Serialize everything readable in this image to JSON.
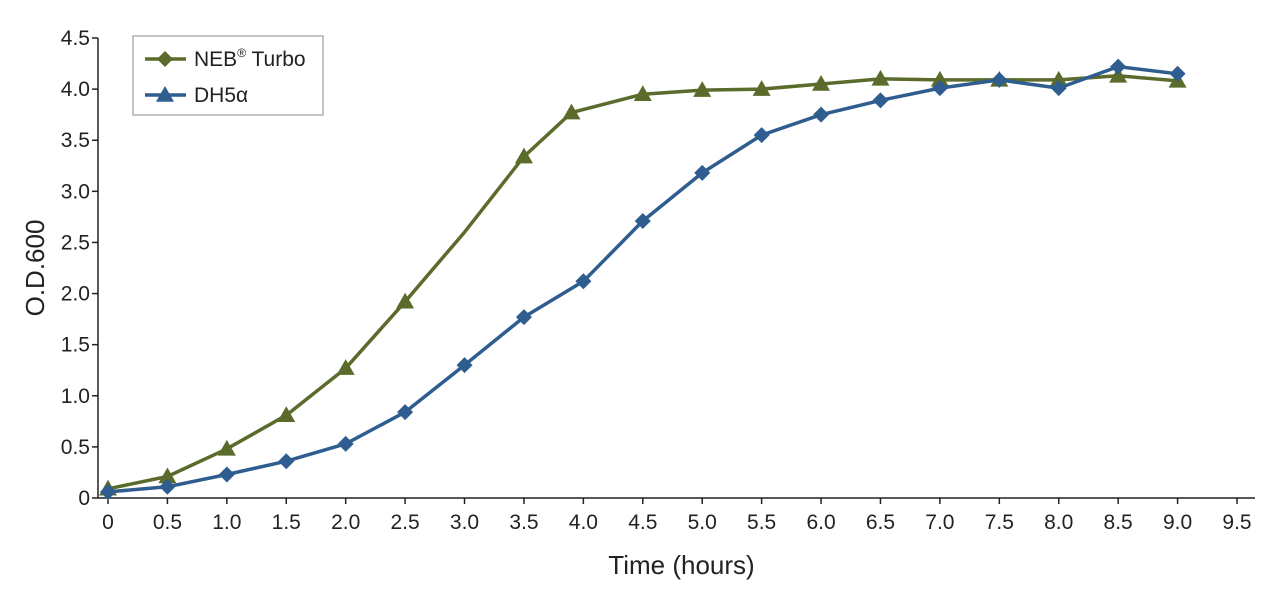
{
  "chart_data": {
    "type": "line",
    "xlabel": "Time (hours)",
    "ylabel": "O.D.600",
    "xlim": [
      0,
      9.5
    ],
    "ylim": [
      0,
      4.5
    ],
    "x_ticks": [
      "0",
      "0.5",
      "1.0",
      "1.5",
      "2.0",
      "2.5",
      "3.0",
      "3.5",
      "4.0",
      "4.5",
      "5.0",
      "5.5",
      "6.0",
      "6.5",
      "7.0",
      "7.5",
      "8.0",
      "8.5",
      "9.0",
      "9.5"
    ],
    "x_tick_values": [
      0,
      0.5,
      1,
      1.5,
      2,
      2.5,
      3,
      3.5,
      4,
      4.5,
      5,
      5.5,
      6,
      6.5,
      7,
      7.5,
      8,
      8.5,
      9,
      9.5
    ],
    "y_ticks": [
      "0",
      "0.5",
      "1.0",
      "1.5",
      "2.0",
      "2.5",
      "3.0",
      "3.5",
      "4.0",
      "4.5"
    ],
    "y_tick_values": [
      0,
      0.5,
      1,
      1.5,
      2,
      2.5,
      3,
      3.5,
      4,
      4.5
    ],
    "grid": false,
    "legend_position": "top-left",
    "series": [
      {
        "name": "NEB",
        "name_sup": "®",
        "name_suffix": " Turbo",
        "color": "#5a6b2b",
        "legend_marker": "diamond",
        "plot_marker": "triangle",
        "x": [
          0,
          0.5,
          1.0,
          1.5,
          2.0,
          2.5,
          3.0,
          3.5,
          3.9,
          4.5,
          5.0,
          5.5,
          6.0,
          6.5,
          7.0,
          7.5,
          8.0,
          8.5,
          9.0
        ],
        "y": [
          0.09,
          0.21,
          0.48,
          0.81,
          1.27,
          1.92,
          2.6,
          3.34,
          3.77,
          3.95,
          3.99,
          4.0,
          4.05,
          4.1,
          4.09,
          4.09,
          4.09,
          4.13,
          4.08
        ],
        "marker_mask": [
          true,
          true,
          true,
          true,
          true,
          true,
          false,
          true,
          true,
          true,
          true,
          true,
          true,
          true,
          true,
          true,
          true,
          true,
          true
        ]
      },
      {
        "name": "DH5α",
        "color": "#2f5d8f",
        "legend_marker": "triangle",
        "plot_marker": "diamond",
        "x": [
          0,
          0.5,
          1.0,
          1.5,
          2.0,
          2.5,
          3.0,
          3.5,
          4.0,
          4.5,
          5.0,
          5.5,
          6.0,
          6.5,
          7.0,
          7.5,
          8.0,
          8.5,
          9.0
        ],
        "y": [
          0.06,
          0.11,
          0.23,
          0.36,
          0.53,
          0.84,
          1.3,
          1.77,
          2.12,
          2.71,
          3.18,
          3.55,
          3.75,
          3.89,
          4.01,
          4.09,
          4.01,
          4.22,
          4.15
        ]
      }
    ]
  }
}
